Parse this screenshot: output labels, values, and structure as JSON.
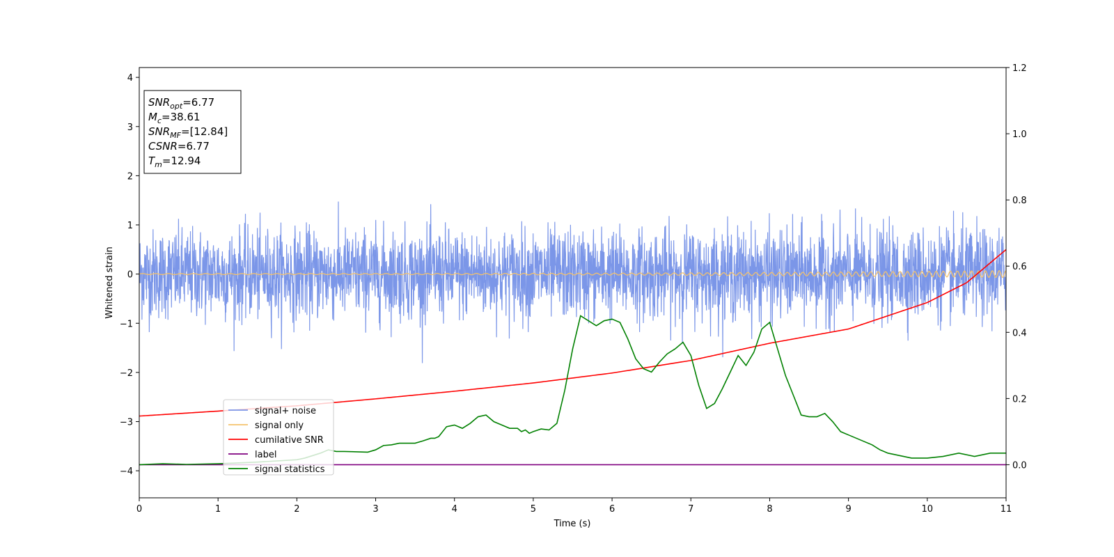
{
  "chart_data": {
    "type": "line",
    "xlabel": "Time (s)",
    "ylabel": "Whitened strain",
    "xlim": [
      0,
      11
    ],
    "ylim": [
      -4.55,
      4.2
    ],
    "y2lim": [
      -0.1,
      1.2
    ],
    "xticks": [
      "0",
      "1",
      "2",
      "3",
      "4",
      "5",
      "6",
      "7",
      "8",
      "9",
      "10",
      "11"
    ],
    "yticks": [
      "4",
      "3",
      "2",
      "1",
      "0",
      "−1",
      "−2",
      "−3",
      "−4"
    ],
    "y2ticks": [
      "0.0",
      "0.2",
      "0.4",
      "0.6",
      "0.8",
      "1.0",
      "1.2"
    ],
    "grid": false,
    "legend_position": "lower-left",
    "annotation": {
      "lines": [
        {
          "main": "SNR",
          "sub": "opt",
          "rest": "=6.77"
        },
        {
          "main": "M",
          "sub": "c",
          "rest": "=38.61"
        },
        {
          "main": "SNR",
          "sub": "MF",
          "rest": "=[12.84]"
        },
        {
          "main": "CSNR",
          "sub": "",
          "rest": "=6.77"
        },
        {
          "main": "T",
          "sub": "m",
          "rest": "=12.94"
        }
      ]
    },
    "series": [
      {
        "name": "signal+ noise",
        "color": "#7b96e8",
        "axis": "left",
        "noise_amplitude": 0.45,
        "peak_range": [
          -1.95,
          1.65
        ]
      },
      {
        "name": "signal only",
        "color": "#f5c26b",
        "axis": "left",
        "amplitude_start": 0.01,
        "amplitude_end": 0.07
      },
      {
        "name": "cumilative SNR",
        "color": "#ff0000",
        "axis": "right",
        "x": [
          0,
          1,
          2,
          3,
          4,
          5,
          6,
          7,
          8,
          9,
          10,
          10.5,
          11
        ],
        "y": [
          0.147,
          0.162,
          0.178,
          0.199,
          0.222,
          0.247,
          0.277,
          0.315,
          0.367,
          0.41,
          0.49,
          0.55,
          0.65
        ]
      },
      {
        "name": "label",
        "color": "#800080",
        "axis": "right",
        "x": [
          0,
          11
        ],
        "y": [
          0.0,
          0.0
        ]
      },
      {
        "name": "signal statistics",
        "color": "#008000",
        "axis": "right",
        "x": [
          0,
          0.3,
          0.6,
          1.0,
          1.5,
          2.0,
          2.1,
          2.3,
          2.4,
          2.5,
          2.6,
          2.9,
          3.0,
          3.1,
          3.2,
          3.3,
          3.5,
          3.6,
          3.7,
          3.75,
          3.8,
          3.9,
          4.0,
          4.1,
          4.2,
          4.25,
          4.3,
          4.4,
          4.5,
          4.6,
          4.7,
          4.8,
          4.85,
          4.9,
          4.95,
          5.0,
          5.1,
          5.2,
          5.3,
          5.4,
          5.5,
          5.6,
          5.7,
          5.8,
          5.9,
          6.0,
          6.1,
          6.2,
          6.3,
          6.4,
          6.5,
          6.6,
          6.7,
          6.8,
          6.9,
          7.0,
          7.1,
          7.2,
          7.3,
          7.4,
          7.5,
          7.6,
          7.7,
          7.8,
          7.9,
          8.0,
          8.1,
          8.2,
          8.3,
          8.4,
          8.5,
          8.6,
          8.7,
          8.8,
          8.9,
          9.0,
          9.1,
          9.2,
          9.3,
          9.4,
          9.5,
          9.6,
          9.7,
          9.8,
          9.9,
          10.0,
          10.2,
          10.4,
          10.6,
          10.7,
          10.8,
          11.0
        ],
        "y": [
          0.0,
          0.003,
          0.001,
          0.003,
          0.008,
          0.015,
          0.02,
          0.035,
          0.045,
          0.04,
          0.04,
          0.038,
          0.045,
          0.058,
          0.06,
          0.065,
          0.065,
          0.072,
          0.08,
          0.08,
          0.085,
          0.115,
          0.12,
          0.11,
          0.125,
          0.135,
          0.145,
          0.15,
          0.13,
          0.12,
          0.11,
          0.11,
          0.1,
          0.105,
          0.095,
          0.1,
          0.108,
          0.105,
          0.125,
          0.225,
          0.35,
          0.45,
          0.435,
          0.42,
          0.435,
          0.44,
          0.43,
          0.38,
          0.32,
          0.29,
          0.28,
          0.31,
          0.335,
          0.35,
          0.37,
          0.33,
          0.24,
          0.17,
          0.185,
          0.23,
          0.28,
          0.33,
          0.3,
          0.34,
          0.41,
          0.43,
          0.35,
          0.27,
          0.21,
          0.15,
          0.145,
          0.145,
          0.155,
          0.13,
          0.1,
          0.09,
          0.08,
          0.07,
          0.06,
          0.045,
          0.035,
          0.03,
          0.025,
          0.02,
          0.02,
          0.02,
          0.025,
          0.035,
          0.025,
          0.03,
          0.035,
          0.035
        ]
      }
    ]
  }
}
